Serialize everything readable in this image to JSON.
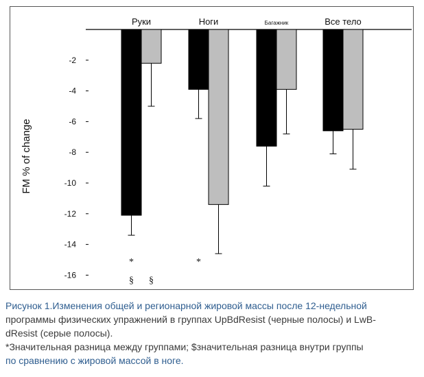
{
  "chart_data": {
    "type": "bar",
    "categories": [
      "Руки",
      "Ноги",
      "Багажник",
      "Все тело"
    ],
    "series": [
      {
        "name": "UpBdResist",
        "color": "#000000",
        "values": [
          -12.1,
          -3.9,
          -7.6,
          -6.6
        ],
        "error": [
          1.3,
          1.9,
          2.6,
          1.5
        ]
      },
      {
        "name": "LwBdResist",
        "color": "#bebebe",
        "values": [
          -2.2,
          -11.4,
          -3.9,
          -6.5
        ],
        "error": [
          2.8,
          3.2,
          2.9,
          2.6
        ]
      }
    ],
    "ylabel": "FM % of change",
    "ylim": [
      -16,
      0
    ],
    "yticks": [
      -2,
      -4,
      -6,
      -8,
      -10,
      -12,
      -14,
      -16
    ],
    "annotations": [
      {
        "text": "*",
        "category": "Руки",
        "series": "UpBdResist",
        "y": -15.1
      },
      {
        "text": "§",
        "category": "Руки",
        "series": "UpBdResist",
        "y": -16.3
      },
      {
        "text": "§",
        "category": "Руки",
        "series": "LwBdResist",
        "y": -16.3
      },
      {
        "text": "*",
        "category": "Ноги",
        "series": "UpBdResist",
        "y": -15.1
      }
    ]
  },
  "caption": {
    "line1": "Рисунок 1.Изменения общей и регионарной жировой массы после 12-недельной",
    "line2": "программы физических упражнений в группах UpBdResist (черные полосы) и LwB-",
    "line3": "dResist (серые полосы).",
    "line4": "*Значительная разница между группами; $значительная разница внутри группы",
    "line5": "по сравнению с жировой массой в ноге."
  }
}
